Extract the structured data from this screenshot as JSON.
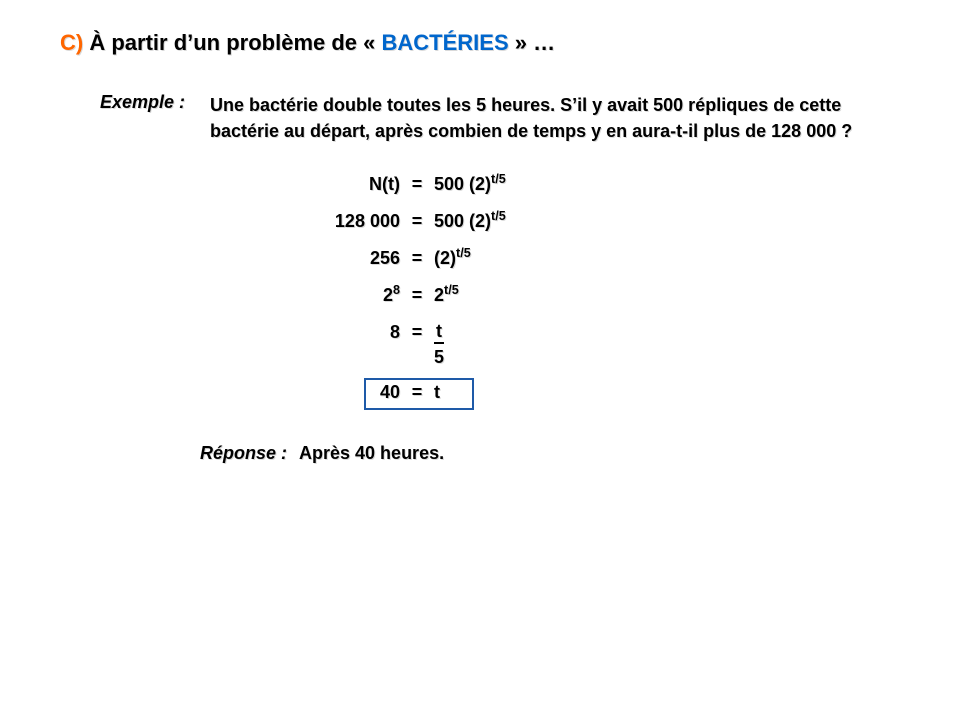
{
  "heading": {
    "label": "C)",
    "prefix": "À partir d’un problème de « ",
    "keyword": "BACTÉRIES",
    "suffix": " » …"
  },
  "exemple": {
    "label": "Exemple :",
    "text": "Une bactérie double toutes les 5 heures.  S’il y avait 500 répliques de cette bactérie au départ, après combien de temps y en aura-t-il plus de 128 000 ?"
  },
  "eq1": {
    "lhs_a": "N(t)",
    "eq": "=",
    "rhs_a": "500 (2)",
    "rhs_sup": "t/5"
  },
  "eq2": {
    "lhs_a": "128 000",
    "eq": "=",
    "rhs_a": "500 (2)",
    "rhs_sup": "t/5"
  },
  "eq3": {
    "lhs_a": "256",
    "eq": "=",
    "rhs_a": "(2)",
    "rhs_sup": "t/5"
  },
  "eq4": {
    "lhs_a": "2",
    "lhs_sup": "8",
    "eq": "=",
    "rhs_a": "2",
    "rhs_sup": "t/5"
  },
  "eq5": {
    "lhs_a": "8",
    "eq": "=",
    "num": "t",
    "den": "5"
  },
  "eq6": {
    "lhs_a": "40",
    "eq": "=",
    "rhs_a": "t"
  },
  "answer": {
    "label": "Réponse :",
    "text": "Après 40 heures."
  },
  "colors": {
    "label": "#ff6600",
    "keyword": "#0066cc",
    "box": "#1e5aa8",
    "text": "#000000",
    "bg": "#ffffff"
  }
}
